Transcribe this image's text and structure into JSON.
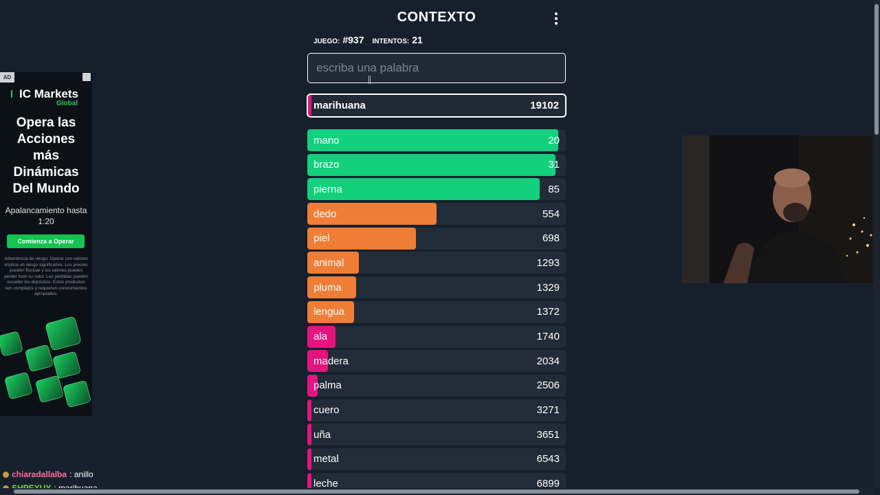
{
  "header": {
    "title": "CONTEXTO"
  },
  "stats": {
    "game_label": "JUEGO:",
    "game_value": "#937",
    "attempts_label": "INTENTOS:",
    "attempts_value": "21"
  },
  "search": {
    "placeholder": "escriba una palabra",
    "value": ""
  },
  "last_guess": {
    "word": "marihuana",
    "distance": "19102",
    "color": "#e3147e"
  },
  "colors": {
    "green": "#12d07c",
    "orange": "#ef7d36",
    "pink": "#e3147e",
    "row_bg": "#222c38",
    "page_bg": "#16202d"
  },
  "guesses": [
    {
      "word": "mano",
      "distance": "20",
      "fill_percent": 97,
      "color": "#12d07c"
    },
    {
      "word": "brazo",
      "distance": "31",
      "fill_percent": 96,
      "color": "#12d07c"
    },
    {
      "word": "pierna",
      "distance": "85",
      "fill_percent": 90,
      "color": "#12d07c"
    },
    {
      "word": "dedo",
      "distance": "554",
      "fill_percent": 50,
      "color": "#ef7d36"
    },
    {
      "word": "piel",
      "distance": "698",
      "fill_percent": 42,
      "color": "#ef7d36"
    },
    {
      "word": "animal",
      "distance": "1293",
      "fill_percent": 20,
      "color": "#ef7d36"
    },
    {
      "word": "pluma",
      "distance": "1329",
      "fill_percent": 19,
      "color": "#ef7d36"
    },
    {
      "word": "lengua",
      "distance": "1372",
      "fill_percent": 18,
      "color": "#ef7d36"
    },
    {
      "word": "ala",
      "distance": "1740",
      "fill_percent": 11,
      "color": "#e3147e"
    },
    {
      "word": "madera",
      "distance": "2034",
      "fill_percent": 8,
      "color": "#e3147e"
    },
    {
      "word": "palma",
      "distance": "2506",
      "fill_percent": 4,
      "color": "#e3147e"
    },
    {
      "word": "cuero",
      "distance": "3271",
      "fill_percent": 1.5,
      "color": "#e3147e"
    },
    {
      "word": "uña",
      "distance": "3651",
      "fill_percent": 1.5,
      "color": "#e3147e"
    },
    {
      "word": "metal",
      "distance": "6543",
      "fill_percent": 1.5,
      "color": "#e3147e"
    },
    {
      "word": "leche",
      "distance": "6899",
      "fill_percent": 1.5,
      "color": "#e3147e"
    }
  ],
  "ad": {
    "badge": "AD",
    "brand": "IC Markets",
    "brand_sub": "Global",
    "headline": "Opera las Acciones más Dinámicas Del Mundo",
    "sub": "Apalancamiento hasta 1:20",
    "cta": "Comienza a Operar",
    "risk": "Advertencia de riesgo: Operar con valores implica un riesgo significativo. Los precios pueden fluctuar y los valores pueden perder todo su valor. Las pérdidas pueden exceder los depósitos. Estos productos son complejos y requieren conocimientos apropiados."
  },
  "chat": [
    {
      "user": "chiaradallalba",
      "message": ": anillo"
    },
    {
      "user": "SHPEXUY",
      "message": ": marihuana"
    }
  ]
}
